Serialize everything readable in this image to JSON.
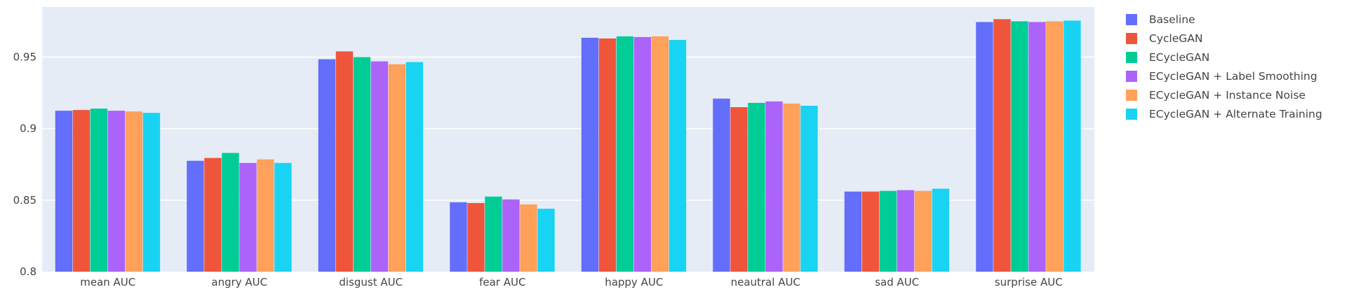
{
  "chart_data": {
    "type": "bar",
    "categories": [
      "mean AUC",
      "angry AUC",
      "disgust AUC",
      "fear AUC",
      "happy AUC",
      "neautral AUC",
      "sad AUC",
      "surprise AUC"
    ],
    "series": [
      {
        "name": "Baseline",
        "color": "#636efa",
        "values": [
          0.9125,
          0.8775,
          0.9485,
          0.8485,
          0.9635,
          0.921,
          0.856,
          0.9745
        ]
      },
      {
        "name": "CycleGAN",
        "color": "#ef553b",
        "values": [
          0.913,
          0.8795,
          0.954,
          0.848,
          0.963,
          0.915,
          0.856,
          0.9765
        ]
      },
      {
        "name": "ECycleGAN",
        "color": "#00cc96",
        "values": [
          0.914,
          0.883,
          0.95,
          0.8525,
          0.9645,
          0.918,
          0.8565,
          0.975
        ]
      },
      {
        "name": "ECycleGAN + Label Smoothing",
        "color": "#ab63fa",
        "values": [
          0.9125,
          0.876,
          0.947,
          0.8505,
          0.964,
          0.919,
          0.857,
          0.9745
        ]
      },
      {
        "name": "ECycleGAN + Instance Noise",
        "color": "#ffa15a",
        "values": [
          0.912,
          0.8785,
          0.945,
          0.847,
          0.9645,
          0.9175,
          0.8565,
          0.975
        ]
      },
      {
        "name": "ECycleGAN + Alternate Training",
        "color": "#19d3f3",
        "values": [
          0.911,
          0.876,
          0.9465,
          0.844,
          0.962,
          0.916,
          0.858,
          0.9755
        ]
      }
    ],
    "yticks": [
      "0.8",
      "0.85",
      "0.9",
      "0.95"
    ],
    "ylim": [
      0.8,
      0.985
    ],
    "grid": true,
    "legend_position": "right",
    "background": "#e5ecf6"
  }
}
